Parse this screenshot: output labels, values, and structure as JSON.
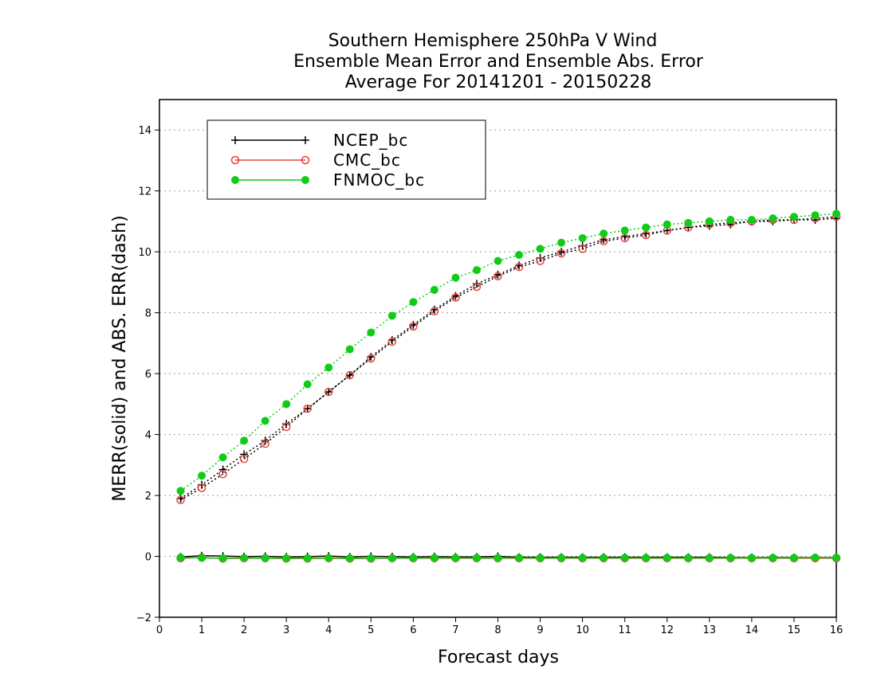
{
  "chart_data": {
    "type": "line",
    "title": [
      "Southern Hemisphere 250hPa V Wind",
      "Ensemble Mean Error and Ensemble Abs. Error",
      "Average For 20141201 - 20150228"
    ],
    "xlabel": "Forecast days",
    "ylabel": "MERR(solid) and ABS. ERR(dash)",
    "xlim": [
      0,
      16
    ],
    "ylim": [
      -2,
      15
    ],
    "xticks": [
      0,
      1,
      2,
      3,
      4,
      5,
      6,
      7,
      8,
      9,
      10,
      11,
      12,
      13,
      14,
      15,
      16
    ],
    "yticks": [
      -2,
      0,
      2,
      4,
      6,
      8,
      10,
      12,
      14
    ],
    "grid": "horizontal dotted at y ticks",
    "legend_position": "top-left",
    "x": [
      0.5,
      1,
      1.5,
      2,
      2.5,
      3,
      3.5,
      4,
      4.5,
      5,
      5.5,
      6,
      6.5,
      7,
      7.5,
      8,
      8.5,
      9,
      9.5,
      10,
      10.5,
      11,
      11.5,
      12,
      12.5,
      13,
      13.5,
      14,
      14.5,
      15,
      15.5,
      16
    ],
    "series": [
      {
        "name": "NCEP_bc",
        "color": "#000000",
        "marker": "plus",
        "merr": [
          -0.02,
          0.02,
          0.01,
          -0.01,
          0.0,
          -0.02,
          -0.01,
          0.01,
          -0.02,
          0.0,
          -0.01,
          -0.02,
          -0.01,
          -0.02,
          -0.02,
          0.0,
          -0.03,
          -0.03,
          -0.03,
          -0.03,
          -0.03,
          -0.03,
          -0.03,
          -0.03,
          -0.03,
          -0.03,
          -0.04,
          -0.04,
          -0.04,
          -0.04,
          -0.04,
          -0.04
        ],
        "abs_err": [
          1.9,
          2.35,
          2.85,
          3.35,
          3.8,
          4.35,
          4.85,
          5.4,
          5.95,
          6.55,
          7.1,
          7.6,
          8.1,
          8.55,
          8.95,
          9.25,
          9.55,
          9.8,
          10.0,
          10.2,
          10.4,
          10.5,
          10.6,
          10.7,
          10.8,
          10.85,
          10.9,
          11.0,
          11.0,
          11.05,
          11.05,
          11.1
        ]
      },
      {
        "name": "CMC_bc",
        "color": "#e8403c",
        "marker": "open-circle",
        "merr": [
          -0.06,
          -0.04,
          -0.07,
          -0.06,
          -0.06,
          -0.07,
          -0.07,
          -0.06,
          -0.07,
          -0.07,
          -0.06,
          -0.06,
          -0.06,
          -0.06,
          -0.06,
          -0.06,
          -0.06,
          -0.06,
          -0.06,
          -0.06,
          -0.06,
          -0.06,
          -0.06,
          -0.06,
          -0.06,
          -0.06,
          -0.06,
          -0.06,
          -0.06,
          -0.06,
          -0.06,
          -0.06
        ],
        "abs_err": [
          1.85,
          2.25,
          2.7,
          3.2,
          3.7,
          4.25,
          4.85,
          5.4,
          5.95,
          6.5,
          7.05,
          7.55,
          8.05,
          8.5,
          8.85,
          9.2,
          9.5,
          9.7,
          9.95,
          10.1,
          10.35,
          10.45,
          10.55,
          10.7,
          10.8,
          10.9,
          10.95,
          11.0,
          11.05,
          11.05,
          11.1,
          11.15
        ]
      },
      {
        "name": "FNMOC_bc",
        "color": "#10cc18",
        "marker": "filled-circle",
        "merr": [
          -0.04,
          -0.05,
          -0.06,
          -0.05,
          -0.06,
          -0.06,
          -0.06,
          -0.05,
          -0.06,
          -0.06,
          -0.06,
          -0.05,
          -0.05,
          -0.05,
          -0.05,
          -0.05,
          -0.05,
          -0.05,
          -0.05,
          -0.05,
          -0.05,
          -0.05,
          -0.05,
          -0.05,
          -0.05,
          -0.05,
          -0.05,
          -0.05,
          -0.05,
          -0.05,
          -0.04,
          -0.04
        ],
        "abs_err": [
          2.15,
          2.65,
          3.25,
          3.8,
          4.45,
          5.0,
          5.65,
          6.2,
          6.8,
          7.35,
          7.9,
          8.35,
          8.75,
          9.15,
          9.4,
          9.7,
          9.9,
          10.1,
          10.3,
          10.45,
          10.6,
          10.7,
          10.8,
          10.9,
          10.95,
          11.0,
          11.05,
          11.05,
          11.1,
          11.15,
          11.2,
          11.25
        ]
      }
    ]
  }
}
